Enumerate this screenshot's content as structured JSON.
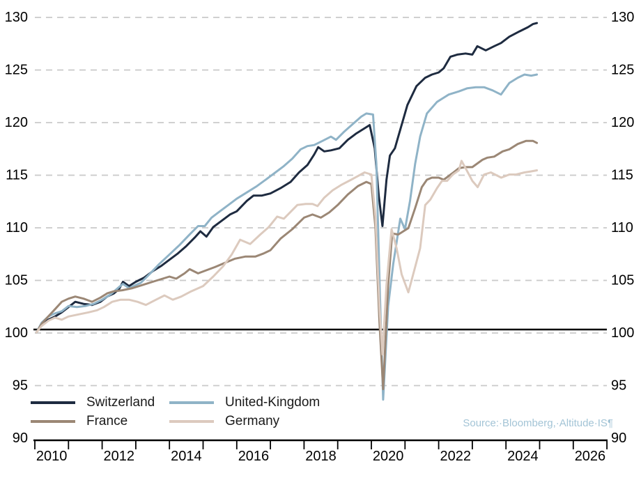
{
  "chart_data": {
    "type": "line",
    "title": "",
    "source_note": "Source:·Bloomberg,·Altitude·IS¶",
    "grid": "dashed-horizontal",
    "legend_position": "bottom-left",
    "reference_line_y": 100,
    "x_axis": {
      "start": 2010,
      "end": 2027,
      "tick_boundaries": [
        2010,
        2011,
        2012,
        2013,
        2014,
        2015,
        2016,
        2017,
        2018,
        2019,
        2020,
        2021,
        2022,
        2023,
        2024,
        2025,
        2026,
        2027
      ],
      "label_years": [
        "2010",
        "2012",
        "2014",
        "2016",
        "2018",
        "2020",
        "2022",
        "2024",
        "2026"
      ]
    },
    "y_axis": {
      "min": 90,
      "max": 130,
      "step": 5,
      "tick_labels": [
        "90",
        "95",
        "100",
        "105",
        "110",
        "115",
        "120",
        "125",
        "130"
      ],
      "sides": "both"
    },
    "colors": {
      "grid": "#c9c9c9",
      "axis": "#000000",
      "reference_line": "#000000",
      "source_text": "#a3c4d6"
    },
    "series": [
      {
        "name": "Switzerland",
        "color": "#1e2b40",
        "points": [
          [
            2010.05,
            100
          ],
          [
            2010.2,
            100.7
          ],
          [
            2010.4,
            101.2
          ],
          [
            2010.6,
            101.5
          ],
          [
            2010.8,
            101.9
          ],
          [
            2011.0,
            102.4
          ],
          [
            2011.2,
            102.9
          ],
          [
            2011.45,
            102.7
          ],
          [
            2011.7,
            102.6
          ],
          [
            2011.95,
            102.9
          ],
          [
            2012.15,
            103.4
          ],
          [
            2012.35,
            103.7
          ],
          [
            2012.5,
            104.1
          ],
          [
            2012.62,
            104.8
          ],
          [
            2012.8,
            104.4
          ],
          [
            2013.0,
            104.8
          ],
          [
            2013.25,
            105.2
          ],
          [
            2013.5,
            105.8
          ],
          [
            2013.75,
            106.3
          ],
          [
            2014.0,
            106.9
          ],
          [
            2014.25,
            107.5
          ],
          [
            2014.5,
            108.2
          ],
          [
            2014.75,
            109.0
          ],
          [
            2014.92,
            109.6
          ],
          [
            2015.1,
            109.1
          ],
          [
            2015.3,
            110.0
          ],
          [
            2015.55,
            110.6
          ],
          [
            2015.8,
            111.2
          ],
          [
            2016.0,
            111.5
          ],
          [
            2016.3,
            112.5
          ],
          [
            2016.5,
            113.0
          ],
          [
            2016.75,
            113.0
          ],
          [
            2017.0,
            113.2
          ],
          [
            2017.3,
            113.7
          ],
          [
            2017.6,
            114.3
          ],
          [
            2017.85,
            115.2
          ],
          [
            2018.1,
            115.9
          ],
          [
            2018.3,
            116.9
          ],
          [
            2018.42,
            117.6
          ],
          [
            2018.6,
            117.2
          ],
          [
            2018.8,
            117.3
          ],
          [
            2019.05,
            117.5
          ],
          [
            2019.3,
            118.3
          ],
          [
            2019.55,
            118.9
          ],
          [
            2019.8,
            119.4
          ],
          [
            2019.95,
            119.7
          ],
          [
            2020.1,
            117.5
          ],
          [
            2020.22,
            113.0
          ],
          [
            2020.33,
            110.1
          ],
          [
            2020.45,
            114.5
          ],
          [
            2020.55,
            116.8
          ],
          [
            2020.7,
            117.5
          ],
          [
            2020.78,
            118.4
          ],
          [
            2021.07,
            121.6
          ],
          [
            2021.34,
            123.4
          ],
          [
            2021.6,
            124.2
          ],
          [
            2021.8,
            124.5
          ],
          [
            2022.0,
            124.7
          ],
          [
            2022.15,
            125.1
          ],
          [
            2022.35,
            126.2
          ],
          [
            2022.55,
            126.4
          ],
          [
            2022.8,
            126.5
          ],
          [
            2023.0,
            126.4
          ],
          [
            2023.15,
            127.2
          ],
          [
            2023.4,
            126.8
          ],
          [
            2023.65,
            127.2
          ],
          [
            2023.85,
            127.5
          ],
          [
            2024.1,
            128.1
          ],
          [
            2024.4,
            128.6
          ],
          [
            2024.65,
            129.0
          ],
          [
            2024.8,
            129.3
          ],
          [
            2024.92,
            129.4
          ]
        ]
      },
      {
        "name": "United-Kingdom",
        "color": "#8fb3c7",
        "points": [
          [
            2010.05,
            100
          ],
          [
            2010.2,
            100.9
          ],
          [
            2010.4,
            101.5
          ],
          [
            2010.6,
            101.8
          ],
          [
            2010.8,
            102.0
          ],
          [
            2011.0,
            102.5
          ],
          [
            2011.25,
            102.4
          ],
          [
            2011.5,
            102.5
          ],
          [
            2011.75,
            102.7
          ],
          [
            2012.0,
            103.1
          ],
          [
            2012.25,
            103.6
          ],
          [
            2012.5,
            104.3
          ],
          [
            2012.62,
            104.6
          ],
          [
            2012.8,
            104.2
          ],
          [
            2013.0,
            104.5
          ],
          [
            2013.15,
            104.7
          ],
          [
            2013.4,
            105.5
          ],
          [
            2013.7,
            106.5
          ],
          [
            2014.0,
            107.4
          ],
          [
            2014.3,
            108.3
          ],
          [
            2014.6,
            109.3
          ],
          [
            2014.85,
            110.1
          ],
          [
            2015.05,
            110.1
          ],
          [
            2015.25,
            110.9
          ],
          [
            2015.5,
            111.5
          ],
          [
            2015.75,
            112.1
          ],
          [
            2016.0,
            112.7
          ],
          [
            2016.3,
            113.3
          ],
          [
            2016.6,
            113.9
          ],
          [
            2016.9,
            114.6
          ],
          [
            2017.15,
            115.2
          ],
          [
            2017.4,
            115.8
          ],
          [
            2017.65,
            116.5
          ],
          [
            2017.9,
            117.4
          ],
          [
            2018.1,
            117.7
          ],
          [
            2018.3,
            117.8
          ],
          [
            2018.55,
            118.2
          ],
          [
            2018.8,
            118.6
          ],
          [
            2018.95,
            118.3
          ],
          [
            2019.2,
            119.1
          ],
          [
            2019.45,
            119.8
          ],
          [
            2019.7,
            120.5
          ],
          [
            2019.85,
            120.8
          ],
          [
            2020.05,
            120.7
          ],
          [
            2020.15,
            116.0
          ],
          [
            2020.25,
            104.0
          ],
          [
            2020.35,
            93.6
          ],
          [
            2020.5,
            102.5
          ],
          [
            2020.65,
            106.5
          ],
          [
            2020.86,
            110.8
          ],
          [
            2021.0,
            109.8
          ],
          [
            2021.15,
            112.5
          ],
          [
            2021.3,
            116.0
          ],
          [
            2021.45,
            118.6
          ],
          [
            2021.65,
            120.8
          ],
          [
            2021.95,
            121.9
          ],
          [
            2022.3,
            122.6
          ],
          [
            2022.6,
            122.9
          ],
          [
            2022.85,
            123.2
          ],
          [
            2023.1,
            123.3
          ],
          [
            2023.35,
            123.3
          ],
          [
            2023.6,
            123.0
          ],
          [
            2023.85,
            122.6
          ],
          [
            2024.1,
            123.7
          ],
          [
            2024.35,
            124.2
          ],
          [
            2024.55,
            124.5
          ],
          [
            2024.75,
            124.4
          ],
          [
            2024.92,
            124.5
          ]
        ]
      },
      {
        "name": "France",
        "color": "#9b8775",
        "points": [
          [
            2010.05,
            100
          ],
          [
            2010.2,
            100.8
          ],
          [
            2010.4,
            101.5
          ],
          [
            2010.6,
            102.2
          ],
          [
            2010.8,
            102.9
          ],
          [
            2011.0,
            103.2
          ],
          [
            2011.2,
            103.4
          ],
          [
            2011.45,
            103.2
          ],
          [
            2011.7,
            102.9
          ],
          [
            2011.95,
            103.3
          ],
          [
            2012.15,
            103.7
          ],
          [
            2012.35,
            103.9
          ],
          [
            2012.6,
            104.0
          ],
          [
            2012.9,
            104.2
          ],
          [
            2013.2,
            104.5
          ],
          [
            2013.5,
            104.8
          ],
          [
            2013.8,
            105.1
          ],
          [
            2014.0,
            105.3
          ],
          [
            2014.2,
            105.1
          ],
          [
            2014.45,
            105.6
          ],
          [
            2014.6,
            106.0
          ],
          [
            2014.85,
            105.6
          ],
          [
            2015.1,
            105.9
          ],
          [
            2015.35,
            106.2
          ],
          [
            2015.65,
            106.6
          ],
          [
            2015.95,
            107.0
          ],
          [
            2016.25,
            107.2
          ],
          [
            2016.55,
            107.2
          ],
          [
            2016.8,
            107.5
          ],
          [
            2017.0,
            107.8
          ],
          [
            2017.3,
            108.9
          ],
          [
            2017.65,
            109.8
          ],
          [
            2018.0,
            110.9
          ],
          [
            2018.25,
            111.2
          ],
          [
            2018.5,
            110.9
          ],
          [
            2018.75,
            111.4
          ],
          [
            2019.0,
            112.1
          ],
          [
            2019.3,
            113.1
          ],
          [
            2019.6,
            113.9
          ],
          [
            2019.85,
            114.3
          ],
          [
            2020.0,
            114.1
          ],
          [
            2020.12,
            110.0
          ],
          [
            2020.24,
            101.0
          ],
          [
            2020.35,
            94.6
          ],
          [
            2020.5,
            104.5
          ],
          [
            2020.62,
            109.4
          ],
          [
            2020.8,
            109.3
          ],
          [
            2020.95,
            109.6
          ],
          [
            2021.1,
            109.9
          ],
          [
            2021.3,
            111.8
          ],
          [
            2021.5,
            113.8
          ],
          [
            2021.65,
            114.5
          ],
          [
            2021.8,
            114.7
          ],
          [
            2022.0,
            114.7
          ],
          [
            2022.15,
            114.5
          ],
          [
            2022.4,
            115.1
          ],
          [
            2022.6,
            115.6
          ],
          [
            2022.8,
            115.7
          ],
          [
            2023.0,
            115.7
          ],
          [
            2023.3,
            116.4
          ],
          [
            2023.45,
            116.6
          ],
          [
            2023.65,
            116.7
          ],
          [
            2023.9,
            117.2
          ],
          [
            2024.1,
            117.4
          ],
          [
            2024.35,
            117.9
          ],
          [
            2024.6,
            118.2
          ],
          [
            2024.8,
            118.2
          ],
          [
            2024.92,
            118.0
          ]
        ]
      },
      {
        "name": "Germany",
        "color": "#dccabe",
        "points": [
          [
            2010.05,
            100
          ],
          [
            2010.2,
            100.6
          ],
          [
            2010.4,
            101.1
          ],
          [
            2010.6,
            101.4
          ],
          [
            2010.8,
            101.2
          ],
          [
            2011.0,
            101.5
          ],
          [
            2011.3,
            101.7
          ],
          [
            2011.6,
            101.9
          ],
          [
            2011.85,
            102.1
          ],
          [
            2012.05,
            102.4
          ],
          [
            2012.3,
            102.9
          ],
          [
            2012.55,
            103.1
          ],
          [
            2012.8,
            103.1
          ],
          [
            2013.05,
            102.9
          ],
          [
            2013.3,
            102.6
          ],
          [
            2013.6,
            103.1
          ],
          [
            2013.85,
            103.5
          ],
          [
            2014.1,
            103.1
          ],
          [
            2014.35,
            103.4
          ],
          [
            2014.65,
            103.9
          ],
          [
            2015.0,
            104.4
          ],
          [
            2015.3,
            105.3
          ],
          [
            2015.6,
            106.3
          ],
          [
            2015.85,
            107.4
          ],
          [
            2016.1,
            108.8
          ],
          [
            2016.4,
            108.4
          ],
          [
            2016.7,
            109.3
          ],
          [
            2016.95,
            110.0
          ],
          [
            2017.2,
            111.0
          ],
          [
            2017.4,
            110.8
          ],
          [
            2017.8,
            112.1
          ],
          [
            2018.05,
            112.2
          ],
          [
            2018.25,
            112.2
          ],
          [
            2018.4,
            112.0
          ],
          [
            2018.6,
            112.8
          ],
          [
            2018.85,
            113.5
          ],
          [
            2019.1,
            114.0
          ],
          [
            2019.4,
            114.5
          ],
          [
            2019.8,
            115.2
          ],
          [
            2020.0,
            115.0
          ],
          [
            2020.12,
            111.0
          ],
          [
            2020.24,
            102.5
          ],
          [
            2020.33,
            97.9
          ],
          [
            2020.45,
            104.5
          ],
          [
            2020.6,
            109.8
          ],
          [
            2020.75,
            108.0
          ],
          [
            2020.9,
            105.5
          ],
          [
            2021.1,
            103.8
          ],
          [
            2021.3,
            106.2
          ],
          [
            2021.45,
            108.0
          ],
          [
            2021.6,
            112.1
          ],
          [
            2021.75,
            112.6
          ],
          [
            2021.95,
            113.7
          ],
          [
            2022.1,
            114.4
          ],
          [
            2022.25,
            114.4
          ],
          [
            2022.42,
            115.0
          ],
          [
            2022.6,
            115.4
          ],
          [
            2022.68,
            116.3
          ],
          [
            2022.85,
            115.3
          ],
          [
            2023.0,
            114.4
          ],
          [
            2023.16,
            113.8
          ],
          [
            2023.35,
            115.0
          ],
          [
            2023.55,
            115.2
          ],
          [
            2023.86,
            114.7
          ],
          [
            2024.1,
            115.0
          ],
          [
            2024.3,
            115.0
          ],
          [
            2024.55,
            115.2
          ],
          [
            2024.75,
            115.3
          ],
          [
            2024.92,
            115.4
          ]
        ]
      }
    ]
  }
}
